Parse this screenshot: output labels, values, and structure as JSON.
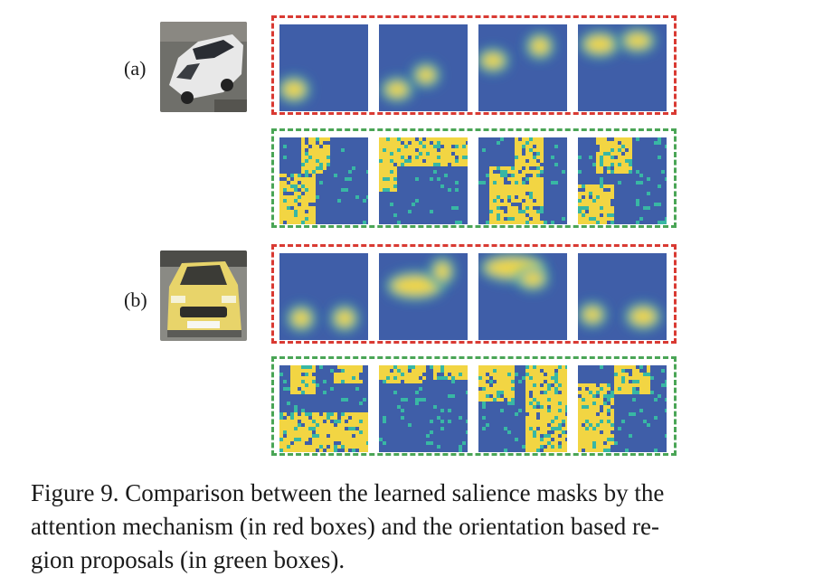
{
  "figure": {
    "rows": [
      {
        "label": "(a)",
        "car_icon": "white-sedan-photo",
        "attention_box_color": "#d93a33",
        "proposal_box_color": "#4aa556"
      },
      {
        "label": "(b)",
        "car_icon": "yellow-hatchback-photo",
        "attention_box_color": "#d93a33",
        "proposal_box_color": "#4aa556"
      }
    ],
    "colormap": {
      "low": "#3f5ea8",
      "mid": "#38b7a4",
      "high": "#f2d543"
    }
  },
  "caption": {
    "line1": "Figure 9. Comparison between the learned salience masks by the",
    "line2": "attention mechanism (in red boxes) and the orientation based re-",
    "line3": "gion proposals (in green boxes)."
  }
}
